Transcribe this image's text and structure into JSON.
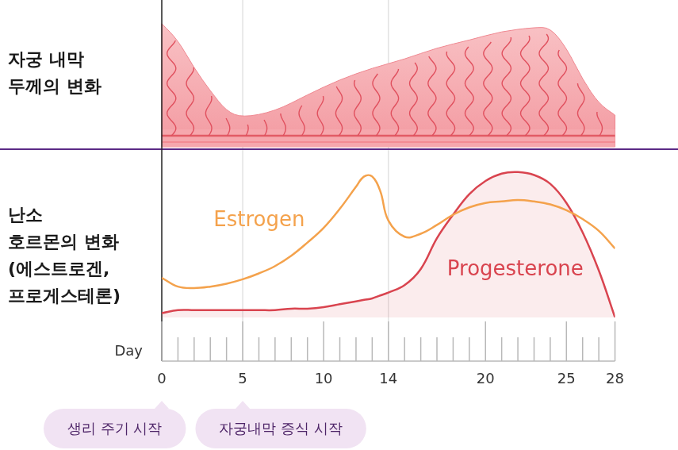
{
  "chart_data": {
    "type": "line",
    "panel_labels": {
      "endometrium": [
        "자궁 내막",
        "두께의 변화"
      ],
      "hormones": [
        "난소",
        "호르몬의 변화",
        "(에스트로겐,",
        "프로게스테론)"
      ]
    },
    "x_label": "Day",
    "x": [
      0,
      1,
      2,
      3,
      4,
      5,
      6,
      7,
      8,
      9,
      10,
      11,
      12,
      12.5,
      13,
      13.5,
      14,
      15,
      16,
      17,
      18,
      19,
      20,
      21,
      22,
      23,
      24,
      25,
      26,
      27,
      28
    ],
    "series": [
      {
        "name": "Estrogen",
        "color": "#f4a24c",
        "type": "line",
        "values": [
          27,
          21,
          20,
          21,
          23,
          26,
          30,
          35,
          42,
          51,
          61,
          74,
          89,
          96,
          96,
          86,
          66,
          55,
          57,
          63,
          70,
          75,
          78,
          79,
          80,
          79,
          77,
          73,
          67,
          59,
          47
        ]
      },
      {
        "name": "Progesterone",
        "color": "#d9444f",
        "type": "area",
        "values": [
          3,
          5,
          5,
          5,
          5,
          5,
          5,
          5,
          6,
          6,
          7,
          9,
          11,
          12,
          13,
          15,
          17,
          22,
          33,
          54,
          70,
          84,
          93,
          98,
          99,
          97,
          91,
          78,
          58,
          32,
          0
        ]
      }
    ],
    "xlim": [
      0,
      28
    ],
    "xticks": [
      0,
      5,
      10,
      14,
      20,
      25,
      28
    ],
    "ylim": [
      0,
      100
    ],
    "tick_labels": "x",
    "grid": false,
    "vlines": [
      5,
      14
    ],
    "endometrium": {
      "x": [
        0,
        1,
        2,
        3,
        4,
        5,
        7,
        9,
        11,
        13,
        15,
        17,
        19,
        21,
        23,
        24,
        25,
        26,
        27,
        28
      ],
      "thickness": [
        97,
        84,
        62,
        44,
        28,
        23,
        28,
        41,
        53,
        62,
        69,
        78,
        84,
        91,
        94,
        94,
        78,
        53,
        34,
        25
      ]
    },
    "annotations": [
      {
        "text": "생리 주기 시작",
        "x": 0
      },
      {
        "text": "자궁내막 증식 시작",
        "x": 5
      }
    ]
  }
}
